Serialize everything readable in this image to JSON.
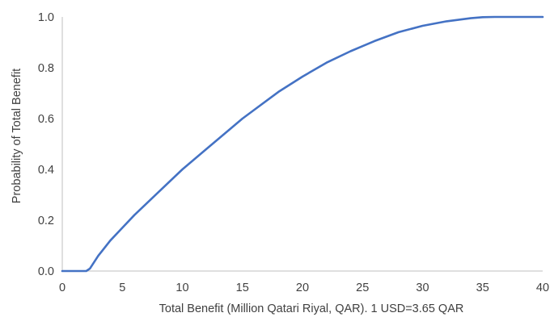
{
  "chart_data": {
    "type": "line",
    "title": "",
    "xlabel": "Total Benefit (Million Qatari Riyal, QAR). 1 USD=3.65 QAR",
    "ylabel": "Probability of Total Benefit",
    "xlim": [
      0,
      40
    ],
    "ylim": [
      0,
      1.0
    ],
    "x_ticks": [
      0,
      5,
      10,
      15,
      20,
      25,
      30,
      35,
      40
    ],
    "x_tick_labels": [
      "0",
      "5",
      "10",
      "15",
      "20",
      "25",
      "30",
      "35",
      "40"
    ],
    "y_ticks": [
      0,
      0.2,
      0.4,
      0.6,
      0.8,
      1.0
    ],
    "y_tick_labels": [
      "0.0",
      "0.2",
      "0.4",
      "0.6",
      "0.8",
      "1.0"
    ],
    "grid": false,
    "legend": "none",
    "series": [
      {
        "color": "#4472C4",
        "x": [
          0,
          2.0,
          2.3,
          3,
          4,
          5,
          6,
          8,
          10,
          12,
          14,
          15,
          16,
          18,
          20,
          22,
          24,
          25,
          26,
          28,
          30,
          32,
          34,
          35,
          36,
          40
        ],
        "y": [
          0,
          0,
          0.01,
          0.06,
          0.12,
          0.17,
          0.22,
          0.31,
          0.4,
          0.48,
          0.56,
          0.6,
          0.635,
          0.705,
          0.765,
          0.82,
          0.865,
          0.885,
          0.905,
          0.94,
          0.965,
          0.983,
          0.995,
          0.999,
          1.0,
          1.0
        ]
      }
    ]
  }
}
